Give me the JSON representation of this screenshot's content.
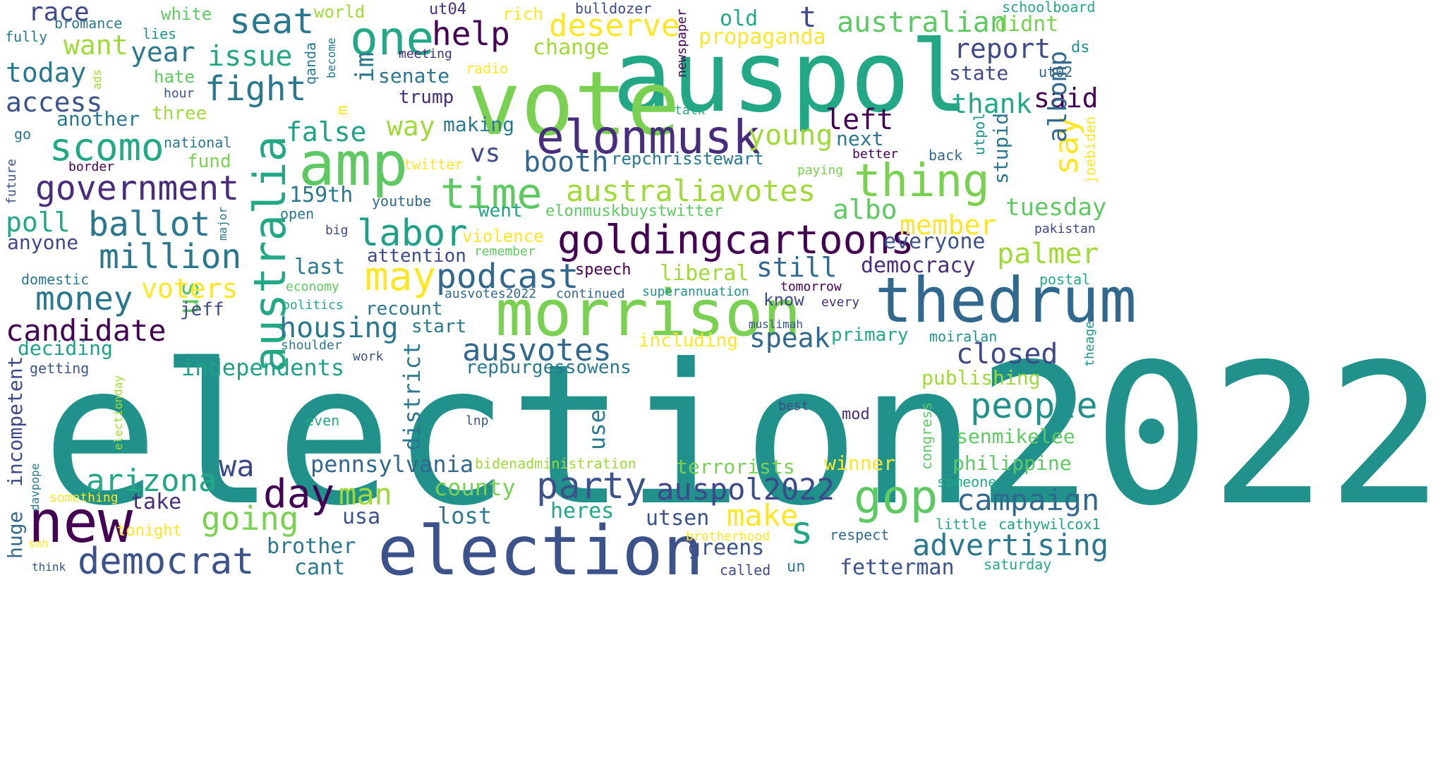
{
  "words": [
    {
      "text": "election2022",
      "color": "#21918c",
      "vertical": false
    },
    {
      "text": "auspol",
      "color": "#22a884",
      "vertical": false
    },
    {
      "text": "vote",
      "color": "#7ad151",
      "vertical": false
    },
    {
      "text": "thedrum",
      "color": "#31688e",
      "vertical": false
    },
    {
      "text": "morrison",
      "color": "#7ad151",
      "vertical": false
    },
    {
      "text": "election",
      "color": "#3b528b",
      "vertical": false
    },
    {
      "text": "amp",
      "color": "#5ec962",
      "vertical": false
    },
    {
      "text": "elonmusk",
      "color": "#472d7b",
      "vertical": false
    },
    {
      "text": "goldingcartoons",
      "color": "#440154",
      "vertical": false
    },
    {
      "text": "new",
      "color": "#440154",
      "vertical": false
    },
    {
      "text": "australia",
      "color": "#22a884",
      "vertical": true
    },
    {
      "text": "one",
      "color": "#22a884",
      "vertical": false
    },
    {
      "text": "time",
      "color": "#5ec962",
      "vertical": false
    },
    {
      "text": "thing",
      "color": "#7ad151",
      "vertical": false
    },
    {
      "text": "labor",
      "color": "#1fa187",
      "vertical": false
    },
    {
      "text": "podcast",
      "color": "#31688e",
      "vertical": false
    },
    {
      "text": "may",
      "color": "#fde725",
      "vertical": false
    },
    {
      "text": "gop",
      "color": "#5ec962",
      "vertical": false
    },
    {
      "text": "democrat",
      "color": "#3b528b",
      "vertical": false
    },
    {
      "text": "party",
      "color": "#3b528b",
      "vertical": false
    },
    {
      "text": "day",
      "color": "#440154",
      "vertical": false
    },
    {
      "text": "people",
      "color": "#21918c",
      "vertical": false
    },
    {
      "text": "scomo",
      "color": "#22a884",
      "vertical": false
    },
    {
      "text": "government",
      "color": "#472d7b",
      "vertical": false
    },
    {
      "text": "seat",
      "color": "#2a788e",
      "vertical": false
    },
    {
      "text": "australiavotes",
      "color": "#a0da39",
      "vertical": false
    },
    {
      "text": "million",
      "color": "#2a788e",
      "vertical": false
    },
    {
      "text": "ballot",
      "color": "#2a788e",
      "vertical": false
    },
    {
      "text": "arizona",
      "color": "#22a884",
      "vertical": false
    },
    {
      "text": "going",
      "color": "#7ad151",
      "vertical": false
    },
    {
      "text": "auspol2022",
      "color": "#3e4989",
      "vertical": false
    },
    {
      "text": "ausvotes",
      "color": "#31688e",
      "vertical": false
    },
    {
      "text": "deserve",
      "color": "#fde725",
      "vertical": false
    },
    {
      "text": "fight",
      "color": "#2a788e",
      "vertical": false
    },
    {
      "text": "money",
      "color": "#2a788e",
      "vertical": false
    },
    {
      "text": "candidate",
      "color": "#440154",
      "vertical": false
    },
    {
      "text": "advertising",
      "color": "#2a788e",
      "vertical": false
    },
    {
      "text": "campaign",
      "color": "#31688e",
      "vertical": false
    },
    {
      "text": "closed",
      "color": "#3e4989",
      "vertical": false
    },
    {
      "text": "say",
      "color": "#fde725",
      "vertical": true
    },
    {
      "text": "australian",
      "color": "#5ec962",
      "vertical": false
    },
    {
      "text": "help",
      "color": "#440154",
      "vertical": false
    },
    {
      "text": "housing",
      "color": "#2a788e",
      "vertical": false
    },
    {
      "text": "speak",
      "color": "#31688e",
      "vertical": false
    },
    {
      "text": "palmer",
      "color": "#a0da39",
      "vertical": false
    },
    {
      "text": "make",
      "color": "#fde725",
      "vertical": false
    },
    {
      "text": "man",
      "color": "#a0da39",
      "vertical": false
    },
    {
      "text": "wa",
      "color": "#3e4989",
      "vertical": false
    },
    {
      "text": "us",
      "color": "#5ec962",
      "vertical": true
    },
    {
      "text": "s",
      "color": "#22a884",
      "vertical": false
    },
    {
      "text": "young",
      "color": "#a0da39",
      "vertical": false
    },
    {
      "text": "left",
      "color": "#440154",
      "vertical": false
    },
    {
      "text": "member",
      "color": "#fde725",
      "vertical": false
    },
    {
      "text": "albo",
      "color": "#5ec962",
      "vertical": false
    },
    {
      "text": "booth",
      "color": "#31688e",
      "vertical": false
    },
    {
      "text": "still",
      "color": "#31688e",
      "vertical": false
    },
    {
      "text": "voters",
      "color": "#fde725",
      "vertical": false
    },
    {
      "text": "report",
      "color": "#3e4989",
      "vertical": false
    },
    {
      "text": "thank",
      "color": "#22a884",
      "vertical": false
    },
    {
      "text": "said",
      "color": "#440154",
      "vertical": false
    },
    {
      "text": "issue",
      "color": "#22a884",
      "vertical": false
    },
    {
      "text": "year",
      "color": "#2a788e",
      "vertical": false
    },
    {
      "text": "today",
      "color": "#2a788e",
      "vertical": false
    },
    {
      "text": "access",
      "color": "#3b528b",
      "vertical": false
    },
    {
      "text": "want",
      "color": "#a0da39",
      "vertical": false
    },
    {
      "text": "race",
      "color": "#3e4989",
      "vertical": false
    },
    {
      "text": "poll",
      "color": "#22a884",
      "vertical": false
    },
    {
      "text": "false",
      "color": "#1fa187",
      "vertical": false
    },
    {
      "text": "way",
      "color": "#a0da39",
      "vertical": false
    },
    {
      "text": "vs",
      "color": "#3e4989",
      "vertical": false
    },
    {
      "text": "t",
      "color": "#3e4989",
      "vertical": false
    },
    {
      "text": "im",
      "color": "#2a788e",
      "vertical": true
    },
    {
      "text": "albomp",
      "color": "#31688e",
      "vertical": true
    },
    {
      "text": "tuesday",
      "color": "#5ec962",
      "vertical": false
    },
    {
      "text": "democracy",
      "color": "#472d7b",
      "vertical": false
    },
    {
      "text": "everyone",
      "color": "#3b528b",
      "vertical": false
    },
    {
      "text": "liberal",
      "color": "#a0da39",
      "vertical": false
    },
    {
      "text": "pennsylvania",
      "color": "#31688e",
      "vertical": false
    },
    {
      "text": "independents",
      "color": "#1fa187",
      "vertical": false
    },
    {
      "text": "district",
      "color": "#2a788e",
      "vertical": true
    },
    {
      "text": "use",
      "color": "#2a788e",
      "vertical": true
    },
    {
      "text": "lost",
      "color": "#2a788e",
      "vertical": false
    },
    {
      "text": "county",
      "color": "#7ad151",
      "vertical": false
    },
    {
      "text": "heres",
      "color": "#22a884",
      "vertical": false
    },
    {
      "text": "take",
      "color": "#472d7b",
      "vertical": false
    },
    {
      "text": "usa",
      "color": "#3b528b",
      "vertical": false
    },
    {
      "text": "brother",
      "color": "#2a788e",
      "vertical": false
    },
    {
      "text": "cant",
      "color": "#2a788e",
      "vertical": false
    },
    {
      "text": "fetterman",
      "color": "#3b528b",
      "vertical": false
    },
    {
      "text": "greens",
      "color": "#3b528b",
      "vertical": false
    },
    {
      "text": "utsen",
      "color": "#3b528b",
      "vertical": false
    },
    {
      "text": "winner",
      "color": "#fde725",
      "vertical": false
    },
    {
      "text": "terrorists",
      "color": "#7ad151",
      "vertical": false
    },
    {
      "text": "philippine",
      "color": "#5ec962",
      "vertical": false
    },
    {
      "text": "senmikelee",
      "color": "#5ec962",
      "vertical": false
    },
    {
      "text": "publishing",
      "color": "#a0da39",
      "vertical": false
    },
    {
      "text": "repburgessowens",
      "color": "#2a788e",
      "vertical": false
    },
    {
      "text": "incompetent",
      "color": "#3e4989",
      "vertical": true
    },
    {
      "text": "huge",
      "color": "#31688e",
      "vertical": true
    },
    {
      "text": "deciding",
      "color": "#1fa187",
      "vertical": false
    },
    {
      "text": "anyone",
      "color": "#3e4989",
      "vertical": false
    },
    {
      "text": "another",
      "color": "#2a788e",
      "vertical": false
    },
    {
      "text": "last",
      "color": "#2a788e",
      "vertical": false
    },
    {
      "text": "159th",
      "color": "#2a788e",
      "vertical": false
    },
    {
      "text": "went",
      "color": "#1fa187",
      "vertical": false
    },
    {
      "text": "making",
      "color": "#2a788e",
      "vertical": false
    },
    {
      "text": "change",
      "color": "#a0da39",
      "vertical": false
    },
    {
      "text": "propaganda",
      "color": "#fde725",
      "vertical": false
    },
    {
      "text": "old",
      "color": "#22a884",
      "vertical": false
    },
    {
      "text": "didnt",
      "color": "#7ad151",
      "vertical": false
    },
    {
      "text": "state",
      "color": "#3e4989",
      "vertical": false
    },
    {
      "text": "next",
      "color": "#2a788e",
      "vertical": false
    },
    {
      "text": "stupid",
      "color": "#2a788e",
      "vertical": true
    },
    {
      "text": "repchrisstewart",
      "color": "#2a788e",
      "vertical": false
    },
    {
      "text": "senate",
      "color": "#2a788e",
      "vertical": false
    },
    {
      "text": "trump",
      "color": "#472d7b",
      "vertical": false
    },
    {
      "text": "attention",
      "color": "#3e4989",
      "vertical": false
    },
    {
      "text": "recount",
      "color": "#2a788e",
      "vertical": false
    },
    {
      "text": "start",
      "color": "#2a788e",
      "vertical": false
    },
    {
      "text": "jeff",
      "color": "#3e4989",
      "vertical": false
    },
    {
      "text": "violence",
      "color": "#fde725",
      "vertical": false
    },
    {
      "text": "speech",
      "color": "#440154",
      "vertical": false
    },
    {
      "text": "know",
      "color": "#3e4989",
      "vertical": false
    },
    {
      "text": "primary",
      "color": "#22a884",
      "vertical": false
    },
    {
      "text": "including",
      "color": "#fde725",
      "vertical": false
    },
    {
      "text": "fund",
      "color": "#7ad151",
      "vertical": false
    },
    {
      "text": "three",
      "color": "#a0da39",
      "vertical": false
    },
    {
      "text": "hate",
      "color": "#5ec962",
      "vertical": false
    },
    {
      "text": "white",
      "color": "#5ec962",
      "vertical": false
    },
    {
      "text": "world",
      "color": "#a0da39",
      "vertical": false
    },
    {
      "text": "ut04",
      "color": "#472d7b",
      "vertical": false
    },
    {
      "text": "rich",
      "color": "#fde725",
      "vertical": false
    },
    {
      "text": "bulldozer",
      "color": "#3e4989",
      "vertical": false
    },
    {
      "text": "newspaper",
      "color": "#440154",
      "vertical": true
    },
    {
      "text": "schoolboard",
      "color": "#22a884",
      "vertical": false
    },
    {
      "text": "ds",
      "color": "#21918c",
      "vertical": false
    },
    {
      "text": "ut02",
      "color": "#31688e",
      "vertical": false
    },
    {
      "text": "bromance",
      "color": "#2a788e",
      "vertical": false
    },
    {
      "text": "lies",
      "color": "#21918c",
      "vertical": false
    },
    {
      "text": "fully",
      "color": "#2a788e",
      "vertical": false
    },
    {
      "text": "meeting",
      "color": "#472d7b",
      "vertical": false
    },
    {
      "text": "radio",
      "color": "#fde725",
      "vertical": false
    },
    {
      "text": "become",
      "color": "#2a788e",
      "vertical": true
    },
    {
      "text": "qanda",
      "color": "#2a788e",
      "vertical": true
    },
    {
      "text": "m",
      "color": "#fde725",
      "vertical": true
    },
    {
      "text": "hour",
      "color": "#3b528b",
      "vertical": false
    },
    {
      "text": "ads",
      "color": "#a0da39",
      "vertical": true
    },
    {
      "text": "talk",
      "color": "#22a884",
      "vertical": false
    },
    {
      "text": "better",
      "color": "#440154",
      "vertical": false
    },
    {
      "text": "back",
      "color": "#31688e",
      "vertical": false
    },
    {
      "text": "utpol",
      "color": "#21918c",
      "vertical": true
    },
    {
      "text": "joebiden",
      "color": "#fde725",
      "vertical": true
    },
    {
      "text": "paying",
      "color": "#7ad151",
      "vertical": false
    },
    {
      "text": "twitter",
      "color": "#fde725",
      "vertical": false
    },
    {
      "text": "national",
      "color": "#2a788e",
      "vertical": false
    },
    {
      "text": "border",
      "color": "#440154",
      "vertical": false
    },
    {
      "text": "go",
      "color": "#2a788e",
      "vertical": false
    },
    {
      "text": "future",
      "color": "#3b528b",
      "vertical": true
    },
    {
      "text": "youtube",
      "color": "#31688e",
      "vertical": false
    },
    {
      "text": "open",
      "color": "#2a788e",
      "vertical": false
    },
    {
      "text": "elonmuskbuystwitter",
      "color": "#5ec962",
      "vertical": false
    },
    {
      "text": "major",
      "color": "#2a788e",
      "vertical": true
    },
    {
      "text": "big",
      "color": "#3e4989",
      "vertical": false
    },
    {
      "text": "remember",
      "color": "#5ec962",
      "vertical": false
    },
    {
      "text": "pakistan",
      "color": "#3e4989",
      "vertical": false
    },
    {
      "text": "domestic",
      "color": "#2a788e",
      "vertical": false
    },
    {
      "text": "economy",
      "color": "#5ec962",
      "vertical": false
    },
    {
      "text": "politics",
      "color": "#22a884",
      "vertical": false
    },
    {
      "text": "ausvotes2022",
      "color": "#31688e",
      "vertical": false
    },
    {
      "text": "continued",
      "color": "#31688e",
      "vertical": false
    },
    {
      "text": "superannuation",
      "color": "#21918c",
      "vertical": false
    },
    {
      "text": "tomorrow",
      "color": "#440154",
      "vertical": false
    },
    {
      "text": "every",
      "color": "#472d7b",
      "vertical": false
    },
    {
      "text": "postal",
      "color": "#22a884",
      "vertical": false
    },
    {
      "text": "muslimah",
      "color": "#3b528b",
      "vertical": false
    },
    {
      "text": "moiralan",
      "color": "#21918c",
      "vertical": false
    },
    {
      "text": "shoulder",
      "color": "#2a788e",
      "vertical": false
    },
    {
      "text": "work",
      "color": "#3b528b",
      "vertical": false
    },
    {
      "text": "getting",
      "color": "#3b528b",
      "vertical": false
    },
    {
      "text": "electionday",
      "color": "#a0da39",
      "vertical": true
    },
    {
      "text": "theage",
      "color": "#21918c",
      "vertical": true
    },
    {
      "text": "even",
      "color": "#22a884",
      "vertical": false
    },
    {
      "text": "lnp",
      "color": "#3b528b",
      "vertical": false
    },
    {
      "text": "best",
      "color": "#3e4989",
      "vertical": false
    },
    {
      "text": "mod",
      "color": "#472d7b",
      "vertical": false
    },
    {
      "text": "congress",
      "color": "#5ec962",
      "vertical": true
    },
    {
      "text": "bidenadministration",
      "color": "#a0da39",
      "vertical": false
    },
    {
      "text": "someone",
      "color": "#22a884",
      "vertical": false
    },
    {
      "text": "davpope",
      "color": "#2a788e",
      "vertical": true
    },
    {
      "text": "something",
      "color": "#fde725",
      "vertical": false
    },
    {
      "text": "tonight",
      "color": "#fde725",
      "vertical": false
    },
    {
      "text": "smh",
      "color": "#fde725",
      "vertical": false
    },
    {
      "text": "think",
      "color": "#3b528b",
      "vertical": false
    },
    {
      "text": "brotherhood",
      "color": "#fde725",
      "vertical": false
    },
    {
      "text": "called",
      "color": "#3e4989",
      "vertical": false
    },
    {
      "text": "un",
      "color": "#2a788e",
      "vertical": false
    },
    {
      "text": "respect",
      "color": "#31688e",
      "vertical": false
    },
    {
      "text": "little",
      "color": "#22a884",
      "vertical": false
    },
    {
      "text": "cathywilcox1",
      "color": "#1fa187",
      "vertical": false
    },
    {
      "text": "saturday",
      "color": "#22a884",
      "vertical": false
    }
  ]
}
